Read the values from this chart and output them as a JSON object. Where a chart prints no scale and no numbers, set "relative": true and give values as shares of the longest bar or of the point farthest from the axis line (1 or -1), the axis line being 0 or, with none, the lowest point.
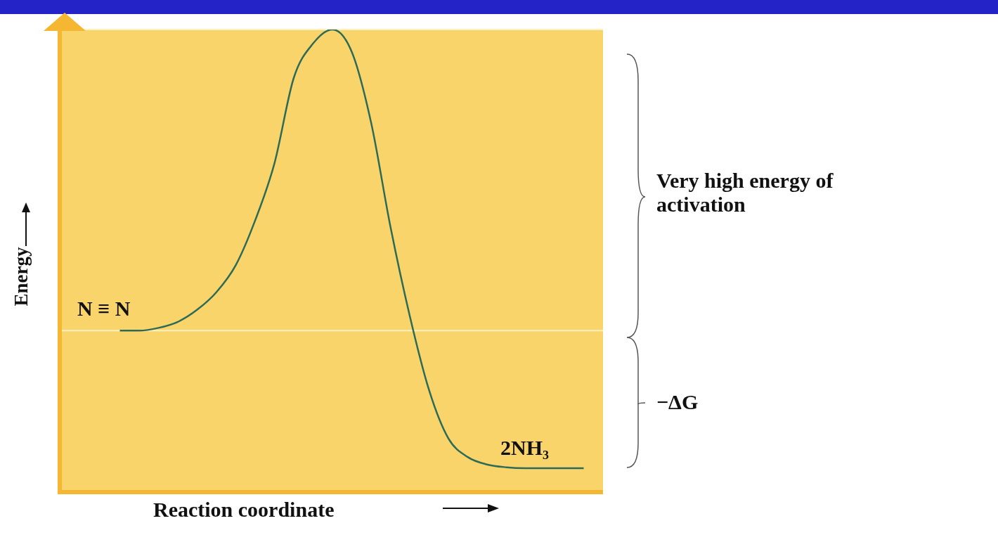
{
  "chart_data": {
    "type": "line",
    "relative": true,
    "xlabel": "Reaction coordinate",
    "ylabel": "Energy",
    "categories": [
      null,
      null,
      null,
      null,
      null,
      null,
      null,
      null,
      null,
      null,
      null,
      null,
      null,
      null,
      null,
      null,
      null,
      null,
      null,
      null,
      null,
      null,
      null,
      null,
      null,
      null,
      null,
      null,
      null
    ],
    "series": [
      {
        "color": "#2e6b57",
        "values": [
          null,
          null,
          null,
          0.352,
          0.352,
          0.358,
          0.371,
          0.397,
          0.435,
          0.493,
          0.589,
          0.712,
          0.896,
          0.97,
          1,
          0.952,
          0.8,
          0.576,
          0.384,
          0.224,
          0.12,
          0.08,
          0.064,
          0.058,
          0.056,
          0.056,
          0.056,
          0.056,
          null
        ]
      }
    ],
    "ref_lines": [
      {
        "axis": "y",
        "value": 1,
        "color": "#fdf0c0"
      },
      {
        "axis": "y",
        "value": 0.352,
        "color": "#fdf0c0"
      }
    ],
    "annotations": [
      "N ≡ N",
      "2NH₃",
      "Very high energy of activation",
      "−ΔG"
    ],
    "marker": "none",
    "line_style": "solid",
    "legend": false
  }
}
